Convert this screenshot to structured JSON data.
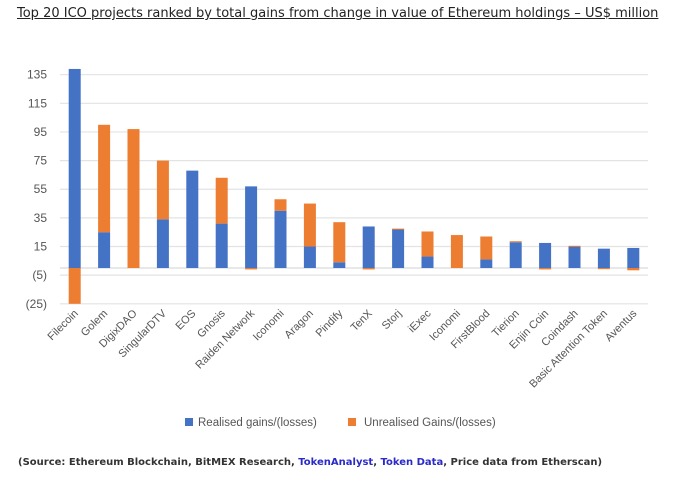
{
  "title": "Top 20 ICO projects ranked by total gains from change in value of Ethereum holdings – US$ million",
  "source": {
    "prefix": "(Source: Ethereum Blockchain, BitMEX Research, ",
    "link1": "TokenAnalyst",
    "sep1": ", ",
    "link2": "Token Data",
    "suffix": ", Price data from Etherscan)"
  },
  "colors": {
    "realised": "#4472C4",
    "unrealised": "#ED7D31",
    "grid": "#e3e3e3"
  },
  "chart_data": {
    "type": "bar",
    "stacked": true,
    "title": "Top 20 ICO projects ranked by total gains from change in value of Ethereum holdings – US$ million",
    "xlabel": "",
    "ylabel": "",
    "ylim": [
      -25,
      145
    ],
    "yticks": [
      135,
      115,
      95,
      75,
      55,
      35,
      15,
      -5,
      -25
    ],
    "ytick_labels": [
      "135",
      "115",
      "95",
      "75",
      "55",
      "35",
      "15",
      "(5)",
      "(25)"
    ],
    "grid": true,
    "legend_position": "bottom",
    "categories": [
      "Filecoin",
      "Golem",
      "DigixDAO",
      "SingularDTV",
      "EOS",
      "Gnosis",
      "Raiden Network",
      "Iconomi",
      "Aragon",
      "Pindify",
      "TenX",
      "Storj",
      "iExec",
      "Iconomi",
      "FirstBlood",
      "Tierion",
      "Enjin Coin",
      "Coindash",
      "Basic Attention Token",
      "Aventus"
    ],
    "series": [
      {
        "name": "Realised gains/(losses)",
        "values": [
          139,
          25,
          0,
          34,
          68,
          31,
          57,
          40,
          15,
          4,
          29,
          27,
          8,
          0,
          6,
          18,
          17.5,
          15,
          13.5,
          14
        ]
      },
      {
        "name": "Unrealised Gains/(losses)",
        "values": [
          -25,
          75,
          97,
          41,
          0,
          32,
          -1,
          8,
          30,
          28,
          -1,
          0.5,
          17.5,
          23,
          16,
          0.7,
          -1,
          0.5,
          -0.8,
          -1.6
        ]
      }
    ]
  }
}
